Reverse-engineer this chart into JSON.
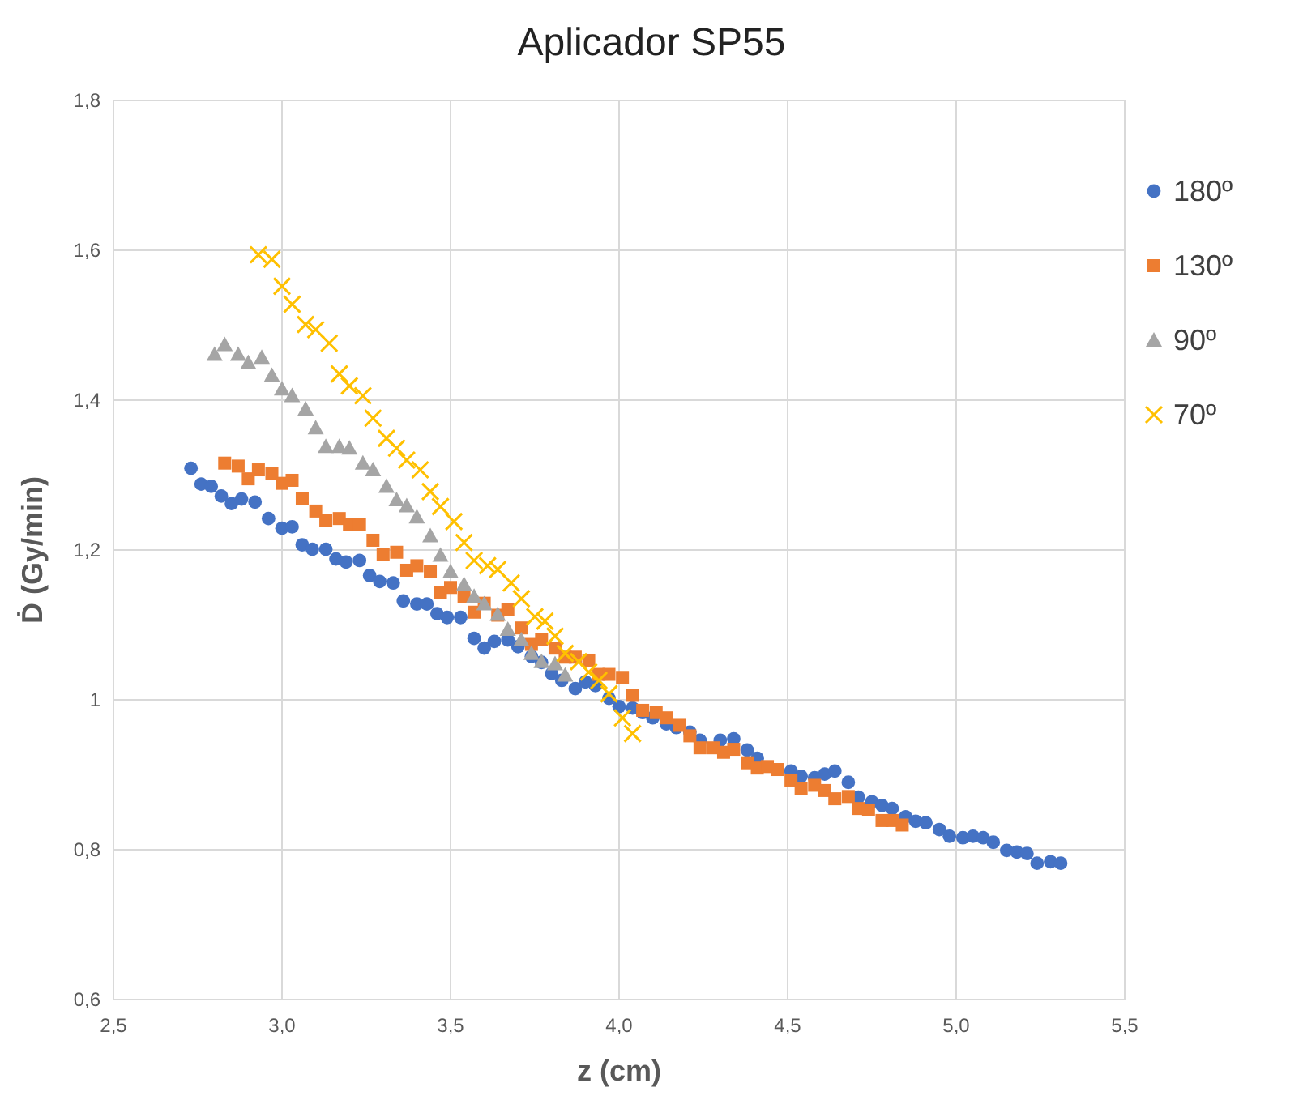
{
  "chart_data": {
    "type": "scatter",
    "title": "Aplicador SP55",
    "xlabel": "z (cm)",
    "ylabel": "Ḋ (Gy/min)",
    "xlim": [
      2.5,
      5.5
    ],
    "ylim": [
      0.6,
      1.8
    ],
    "xticks": [
      {
        "value": 2.5,
        "label": "2,5"
      },
      {
        "value": 3,
        "label": "3,0"
      },
      {
        "value": 3.5,
        "label": "3,5"
      },
      {
        "value": 4,
        "label": "4,0"
      },
      {
        "value": 4.5,
        "label": "4,5"
      },
      {
        "value": 5,
        "label": "5,0"
      },
      {
        "value": 5.5,
        "label": "5,5"
      }
    ],
    "yticks": [
      {
        "value": 0.6,
        "label": "0,6"
      },
      {
        "value": 0.8,
        "label": "0,8"
      },
      1,
      {
        "value": 1.2,
        "label": "1,2"
      },
      {
        "value": 1.4,
        "label": "1,4"
      },
      {
        "value": 1.6,
        "label": "1,6"
      },
      {
        "value": 1.8,
        "label": "1,8"
      }
    ],
    "grid": true,
    "legend": "right",
    "series": [
      {
        "name": "180º",
        "color": "#4472c4",
        "marker": "circle",
        "x": [
          2.73,
          2.76,
          2.79,
          2.82,
          2.85,
          2.88,
          2.92,
          2.96,
          3.0,
          3.03,
          3.06,
          3.09,
          3.13,
          3.16,
          3.19,
          3.23,
          3.26,
          3.29,
          3.33,
          3.36,
          3.4,
          3.43,
          3.46,
          3.49,
          3.53,
          3.57,
          3.6,
          3.63,
          3.67,
          3.7,
          3.74,
          3.77,
          3.8,
          3.83,
          3.87,
          3.9,
          3.93,
          3.97,
          4.0,
          4.04,
          4.07,
          4.1,
          4.14,
          4.17,
          4.21,
          4.24,
          4.3,
          4.34,
          4.38,
          4.41,
          4.51,
          4.54,
          4.58,
          4.61,
          4.64,
          4.68,
          4.71,
          4.75,
          4.78,
          4.81,
          4.85,
          4.88,
          4.91,
          4.95,
          4.98,
          5.02,
          5.05,
          5.08,
          5.11,
          5.15,
          5.18,
          5.21,
          5.24,
          5.28,
          5.31
        ],
        "values": [
          1.309,
          1.288,
          1.285,
          1.272,
          1.262,
          1.268,
          1.264,
          1.242,
          1.229,
          1.231,
          1.207,
          1.201,
          1.201,
          1.188,
          1.184,
          1.186,
          1.166,
          1.158,
          1.156,
          1.132,
          1.128,
          1.128,
          1.115,
          1.11,
          1.11,
          1.082,
          1.069,
          1.078,
          1.08,
          1.071,
          1.058,
          1.05,
          1.035,
          1.026,
          1.015,
          1.024,
          1.019,
          1.002,
          0.991,
          0.989,
          0.983,
          0.976,
          0.968,
          0.963,
          0.957,
          0.946,
          0.946,
          0.948,
          0.933,
          0.922,
          0.905,
          0.898,
          0.896,
          0.901,
          0.905,
          0.89,
          0.87,
          0.864,
          0.859,
          0.855,
          0.844,
          0.838,
          0.836,
          0.827,
          0.818,
          0.816,
          0.818,
          0.816,
          0.81,
          0.799,
          0.797,
          0.795,
          0.782,
          0.784,
          0.782
        ]
      },
      {
        "name": "130º",
        "color": "#ed7d31",
        "marker": "square",
        "x": [
          2.83,
          2.87,
          2.9,
          2.93,
          2.97,
          3.0,
          3.03,
          3.06,
          3.1,
          3.13,
          3.17,
          3.2,
          3.23,
          3.27,
          3.3,
          3.34,
          3.37,
          3.4,
          3.44,
          3.47,
          3.5,
          3.54,
          3.57,
          3.6,
          3.64,
          3.67,
          3.71,
          3.74,
          3.77,
          3.81,
          3.84,
          3.87,
          3.91,
          3.94,
          3.97,
          4.01,
          4.04,
          4.07,
          4.11,
          4.14,
          4.18,
          4.21,
          4.24,
          4.28,
          4.31,
          4.34,
          4.38,
          4.41,
          4.44,
          4.47,
          4.51,
          4.54,
          4.58,
          4.61,
          4.64,
          4.68,
          4.71,
          4.74,
          4.78,
          4.81,
          4.84
        ],
        "values": [
          1.316,
          1.312,
          1.295,
          1.307,
          1.302,
          1.289,
          1.293,
          1.269,
          1.252,
          1.239,
          1.242,
          1.234,
          1.234,
          1.213,
          1.194,
          1.197,
          1.173,
          1.179,
          1.171,
          1.143,
          1.15,
          1.138,
          1.117,
          1.129,
          1.113,
          1.12,
          1.096,
          1.074,
          1.081,
          1.069,
          1.057,
          1.057,
          1.053,
          1.034,
          1.034,
          1.03,
          1.006,
          0.986,
          0.983,
          0.976,
          0.966,
          0.952,
          0.936,
          0.936,
          0.93,
          0.934,
          0.916,
          0.909,
          0.911,
          0.907,
          0.893,
          0.882,
          0.886,
          0.879,
          0.868,
          0.871,
          0.855,
          0.853,
          0.839,
          0.839,
          0.833
        ]
      },
      {
        "name": "90º",
        "color": "#a5a5a5",
        "marker": "triangle",
        "x": [
          2.8,
          2.83,
          2.87,
          2.9,
          2.94,
          2.97,
          3.0,
          3.03,
          3.07,
          3.1,
          3.13,
          3.17,
          3.2,
          3.24,
          3.27,
          3.31,
          3.34,
          3.37,
          3.4,
          3.44,
          3.47,
          3.5,
          3.54,
          3.57,
          3.6,
          3.64,
          3.67,
          3.71,
          3.74,
          3.77,
          3.81,
          3.84
        ],
        "values": [
          1.461,
          1.474,
          1.461,
          1.45,
          1.457,
          1.433,
          1.415,
          1.406,
          1.388,
          1.363,
          1.338,
          1.338,
          1.336,
          1.316,
          1.307,
          1.285,
          1.267,
          1.259,
          1.244,
          1.219,
          1.193,
          1.171,
          1.154,
          1.138,
          1.128,
          1.114,
          1.094,
          1.08,
          1.062,
          1.051,
          1.048,
          1.033
        ]
      },
      {
        "name": "70º",
        "color": "#ffc000",
        "marker": "cross",
        "x": [
          2.93,
          2.97,
          3.0,
          3.03,
          3.07,
          3.1,
          3.14,
          3.17,
          3.2,
          3.24,
          3.27,
          3.31,
          3.34,
          3.37,
          3.41,
          3.44,
          3.47,
          3.51,
          3.54,
          3.57,
          3.61,
          3.64,
          3.68,
          3.71,
          3.75,
          3.78,
          3.81,
          3.84,
          3.88,
          3.91,
          3.94,
          3.97,
          4.01,
          4.04
        ],
        "values": [
          1.594,
          1.588,
          1.552,
          1.528,
          1.501,
          1.494,
          1.476,
          1.435,
          1.419,
          1.406,
          1.376,
          1.349,
          1.336,
          1.32,
          1.307,
          1.278,
          1.258,
          1.238,
          1.21,
          1.186,
          1.179,
          1.174,
          1.156,
          1.135,
          1.111,
          1.105,
          1.085,
          1.062,
          1.051,
          1.037,
          1.026,
          1.008,
          0.976,
          0.955
        ]
      }
    ]
  }
}
